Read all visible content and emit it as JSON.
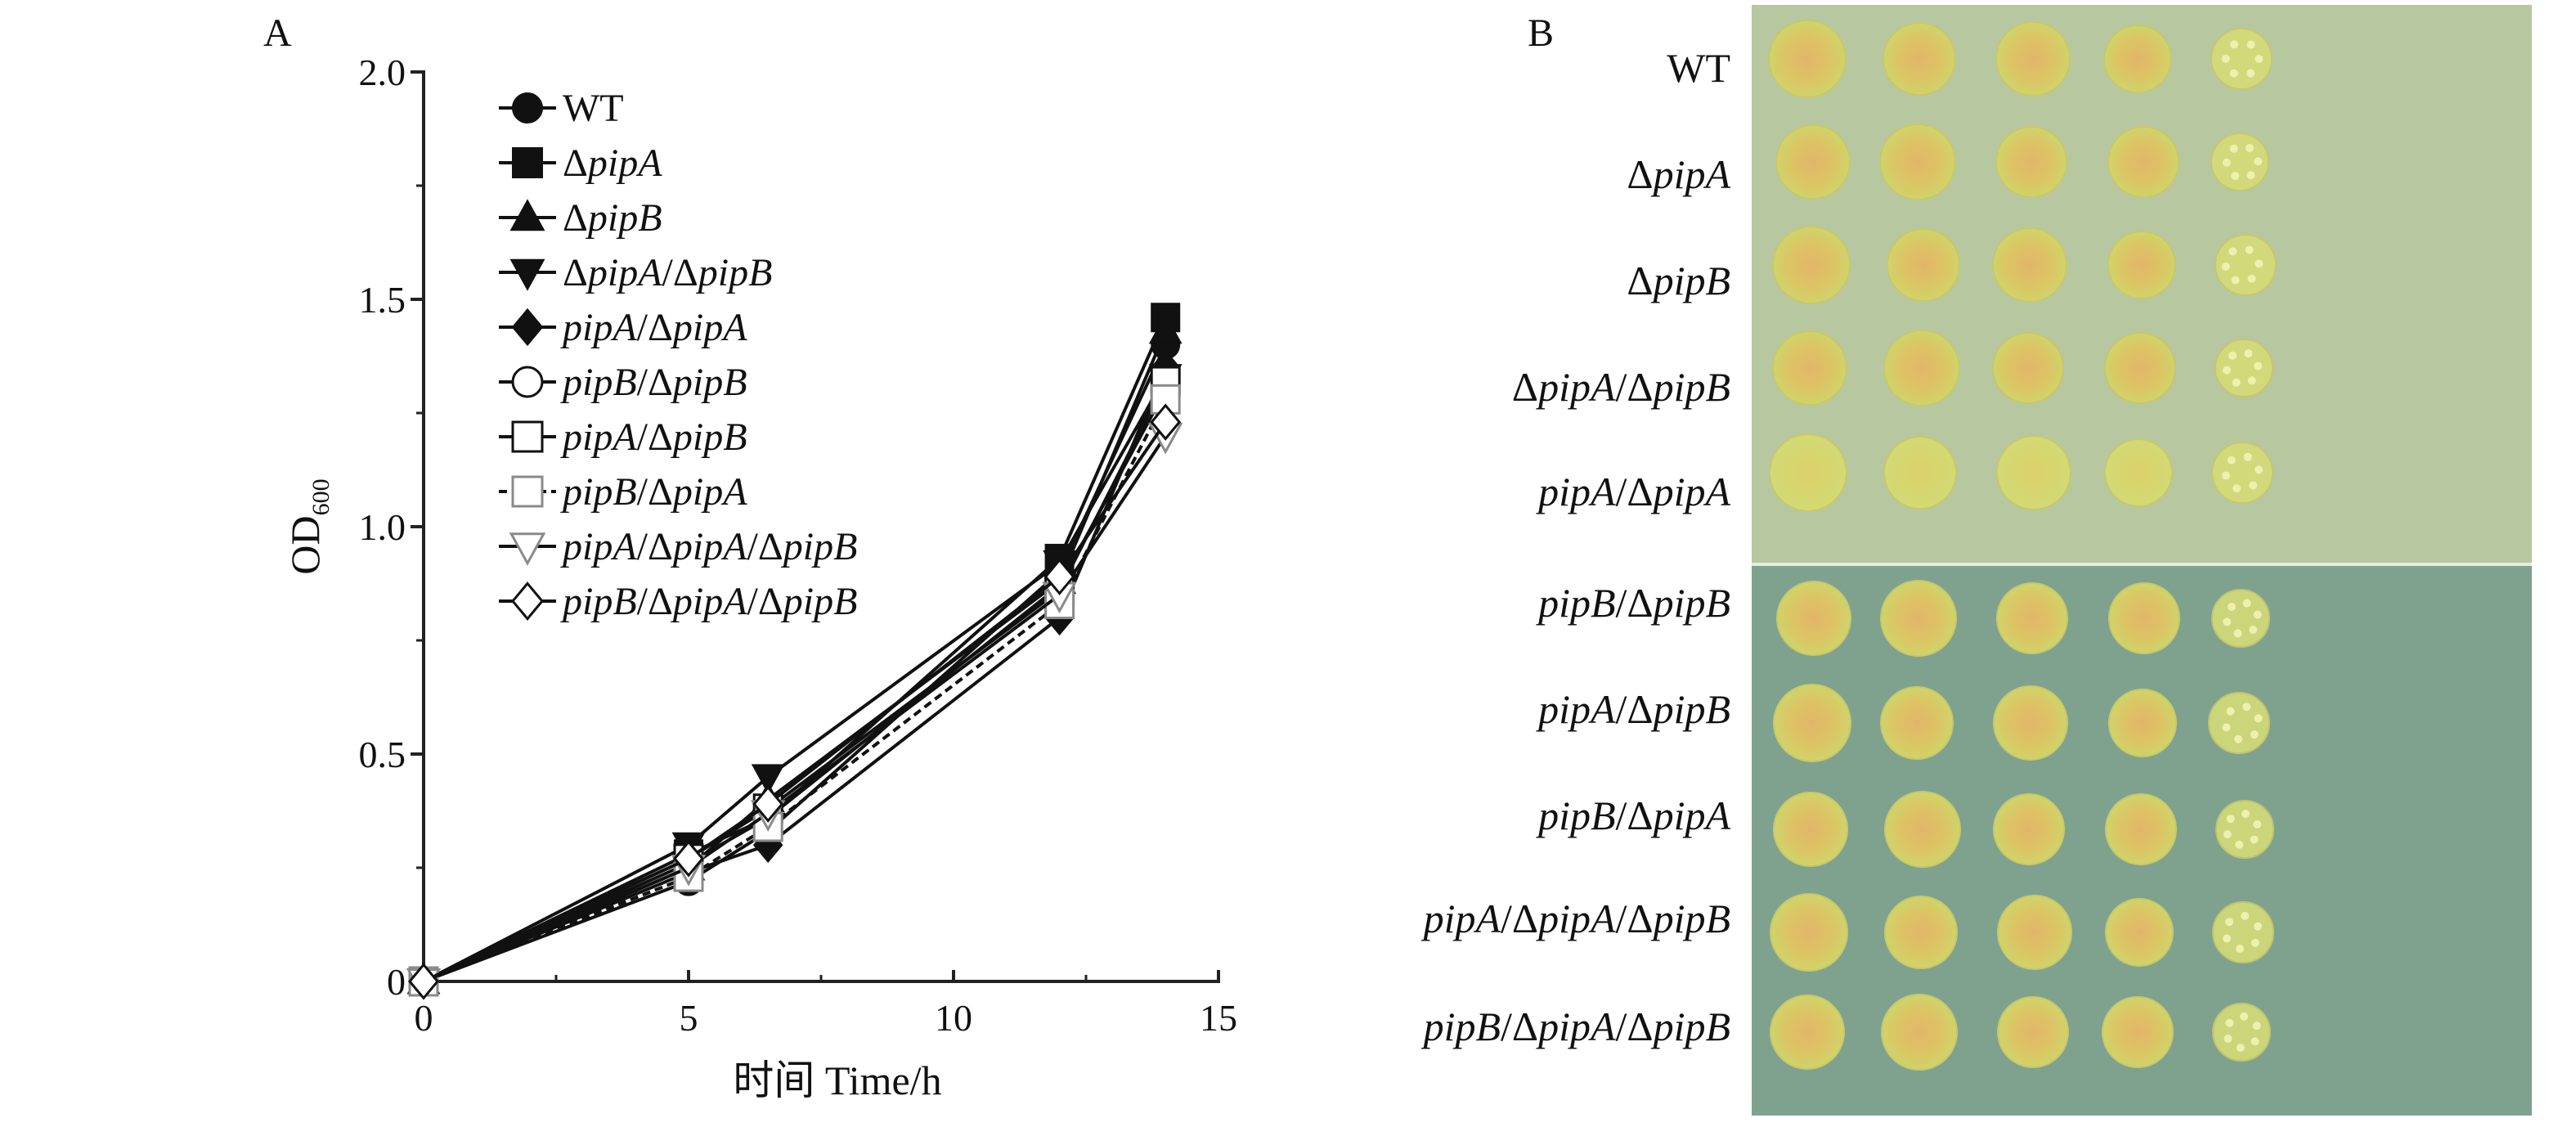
{
  "panels": {
    "a_label": "A",
    "b_label": "B"
  },
  "chart_data": {
    "type": "line",
    "xlabel": "时间 Time/h",
    "ylabel": "OD",
    "ylabel_subscript": "600",
    "xlim": [
      0,
      15
    ],
    "ylim": [
      0,
      2.0
    ],
    "x_ticks": [
      "0",
      "5",
      "10",
      "15"
    ],
    "y_ticks": [
      "0",
      "0.5",
      "1.0",
      "1.5",
      "2.0"
    ],
    "x_tick_values": [
      0,
      5,
      10,
      15
    ],
    "y_tick_values": [
      0,
      0.5,
      1.0,
      1.5,
      2.0
    ],
    "grid": false,
    "legend_position": "top-left",
    "x": [
      0,
      5,
      6.5,
      12,
      14
    ],
    "series": [
      {
        "name": "WT",
        "values": [
          0,
          0.22,
          0.33,
          0.9,
          1.4
        ],
        "marker": "circle",
        "fill": "filled",
        "dash": "solid"
      },
      {
        "name": "ΔpipA",
        "values": [
          0,
          0.28,
          0.36,
          0.93,
          1.46
        ],
        "marker": "square",
        "fill": "filled",
        "dash": "solid"
      },
      {
        "name": "ΔpipB",
        "values": [
          0,
          0.25,
          0.4,
          0.88,
          1.43
        ],
        "marker": "triangle",
        "fill": "filled",
        "dash": "solid"
      },
      {
        "name": "ΔpipA/ΔpipB",
        "values": [
          0,
          0.3,
          0.45,
          0.92,
          1.33
        ],
        "marker": "triangle-down",
        "fill": "filled",
        "dash": "solid"
      },
      {
        "name": "pipA/ΔpipA",
        "values": [
          0,
          0.24,
          0.3,
          0.8,
          1.35
        ],
        "marker": "diamond",
        "fill": "filled",
        "dash": "solid"
      },
      {
        "name": "pipB/ΔpipB",
        "values": [
          0,
          0.26,
          0.36,
          0.87,
          1.3
        ],
        "marker": "circle",
        "fill": "open",
        "dash": "solid"
      },
      {
        "name": "pipA/ΔpipB",
        "values": [
          0,
          0.27,
          0.38,
          0.86,
          1.32
        ],
        "marker": "square",
        "fill": "open",
        "dash": "solid"
      },
      {
        "name": "pipB/ΔpipA",
        "values": [
          0,
          0.23,
          0.34,
          0.83,
          1.28
        ],
        "marker": "square",
        "fill": "open-light",
        "dash": "dashed"
      },
      {
        "name": "pipA/ΔpipA/ΔpipB",
        "values": [
          0,
          0.25,
          0.37,
          0.85,
          1.2
        ],
        "marker": "triangle-down",
        "fill": "open-light",
        "dash": "solid"
      },
      {
        "name": "pipB/ΔpipA/ΔpipB",
        "values": [
          0,
          0.27,
          0.39,
          0.89,
          1.23
        ],
        "marker": "diamond",
        "fill": "open",
        "dash": "solid"
      }
    ]
  },
  "spot_assay": {
    "top_rows": [
      "WT",
      "ΔpipA",
      "ΔpipB",
      "ΔpipA/ΔpipB",
      "pipA/ΔpipA"
    ],
    "bottom_rows": [
      "pipB/ΔpipB",
      "pipA/ΔpipB",
      "pipB/ΔpipA",
      "pipA/ΔpipA/ΔpipB",
      "pipB/ΔpipA/ΔpipB"
    ],
    "plate_top_color": "#b7c7a0",
    "plate_bottom_color": "#7fa28f",
    "colony_color": "#d8d56a",
    "colony_center_color": "#e0b86a"
  }
}
